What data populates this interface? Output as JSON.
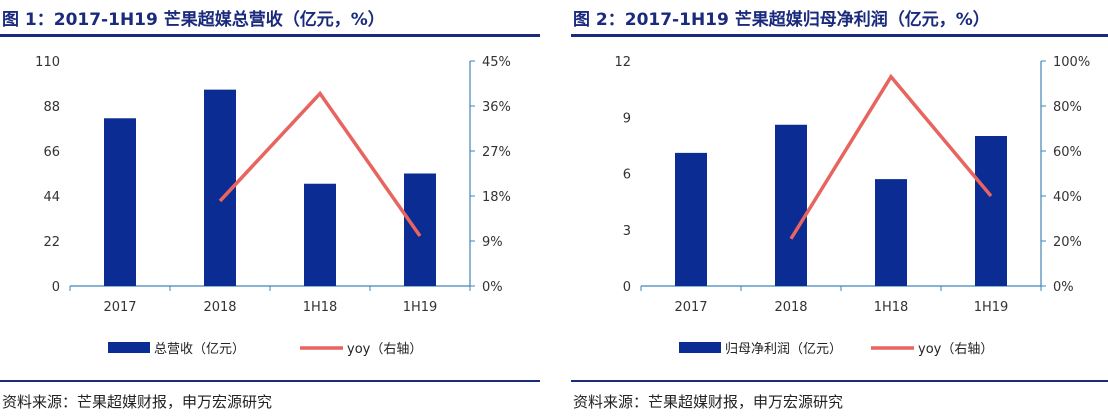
{
  "source_text": "资料来源：芒果超媒财报，申万宏源研究",
  "colors": {
    "bar": "#0a2c93",
    "line": "#e8645e",
    "axis": "#3f86b8",
    "title": "#1a2a7c"
  },
  "chart_data": [
    {
      "type": "bar",
      "title": "图 1：2017-1H19 芒果超媒总营收（亿元，%）",
      "categories": [
        "2017",
        "2018",
        "1H18",
        "1H19"
      ],
      "series": [
        {
          "name": "总营收（亿元）",
          "type": "bar",
          "axis": "left",
          "values": [
            82,
            96,
            50,
            55
          ]
        },
        {
          "name": "yoy（右轴）",
          "type": "line",
          "axis": "right",
          "x": [
            "2018",
            "1H18",
            "1H19"
          ],
          "values": [
            0.17,
            0.385,
            0.1
          ]
        }
      ],
      "y_left": {
        "min": 0,
        "max": 110,
        "ticks": [
          "0",
          "22",
          "44",
          "66",
          "88",
          "110"
        ]
      },
      "y_right": {
        "min": 0,
        "max": 0.45,
        "ticks": [
          "0%",
          "9%",
          "18%",
          "27%",
          "36%",
          "45%"
        ]
      },
      "grid": false,
      "legend_position": "bottom"
    },
    {
      "type": "bar",
      "title": "图 2：2017-1H19 芒果超媒归母净利润（亿元，%）",
      "categories": [
        "2017",
        "2018",
        "1H18",
        "1H19"
      ],
      "series": [
        {
          "name": "归母净利润（亿元）",
          "type": "bar",
          "axis": "left",
          "values": [
            7.1,
            8.6,
            5.7,
            8.0
          ]
        },
        {
          "name": "yoy（右轴）",
          "type": "line",
          "axis": "right",
          "x": [
            "2018",
            "1H18",
            "1H19"
          ],
          "values": [
            0.21,
            0.93,
            0.4
          ]
        }
      ],
      "y_left": {
        "min": 0,
        "max": 12,
        "ticks": [
          "0",
          "3",
          "6",
          "9",
          "12"
        ]
      },
      "y_right": {
        "min": 0,
        "max": 1.0,
        "ticks": [
          "0%",
          "20%",
          "40%",
          "60%",
          "80%",
          "100%"
        ]
      },
      "grid": false,
      "legend_position": "bottom"
    }
  ]
}
